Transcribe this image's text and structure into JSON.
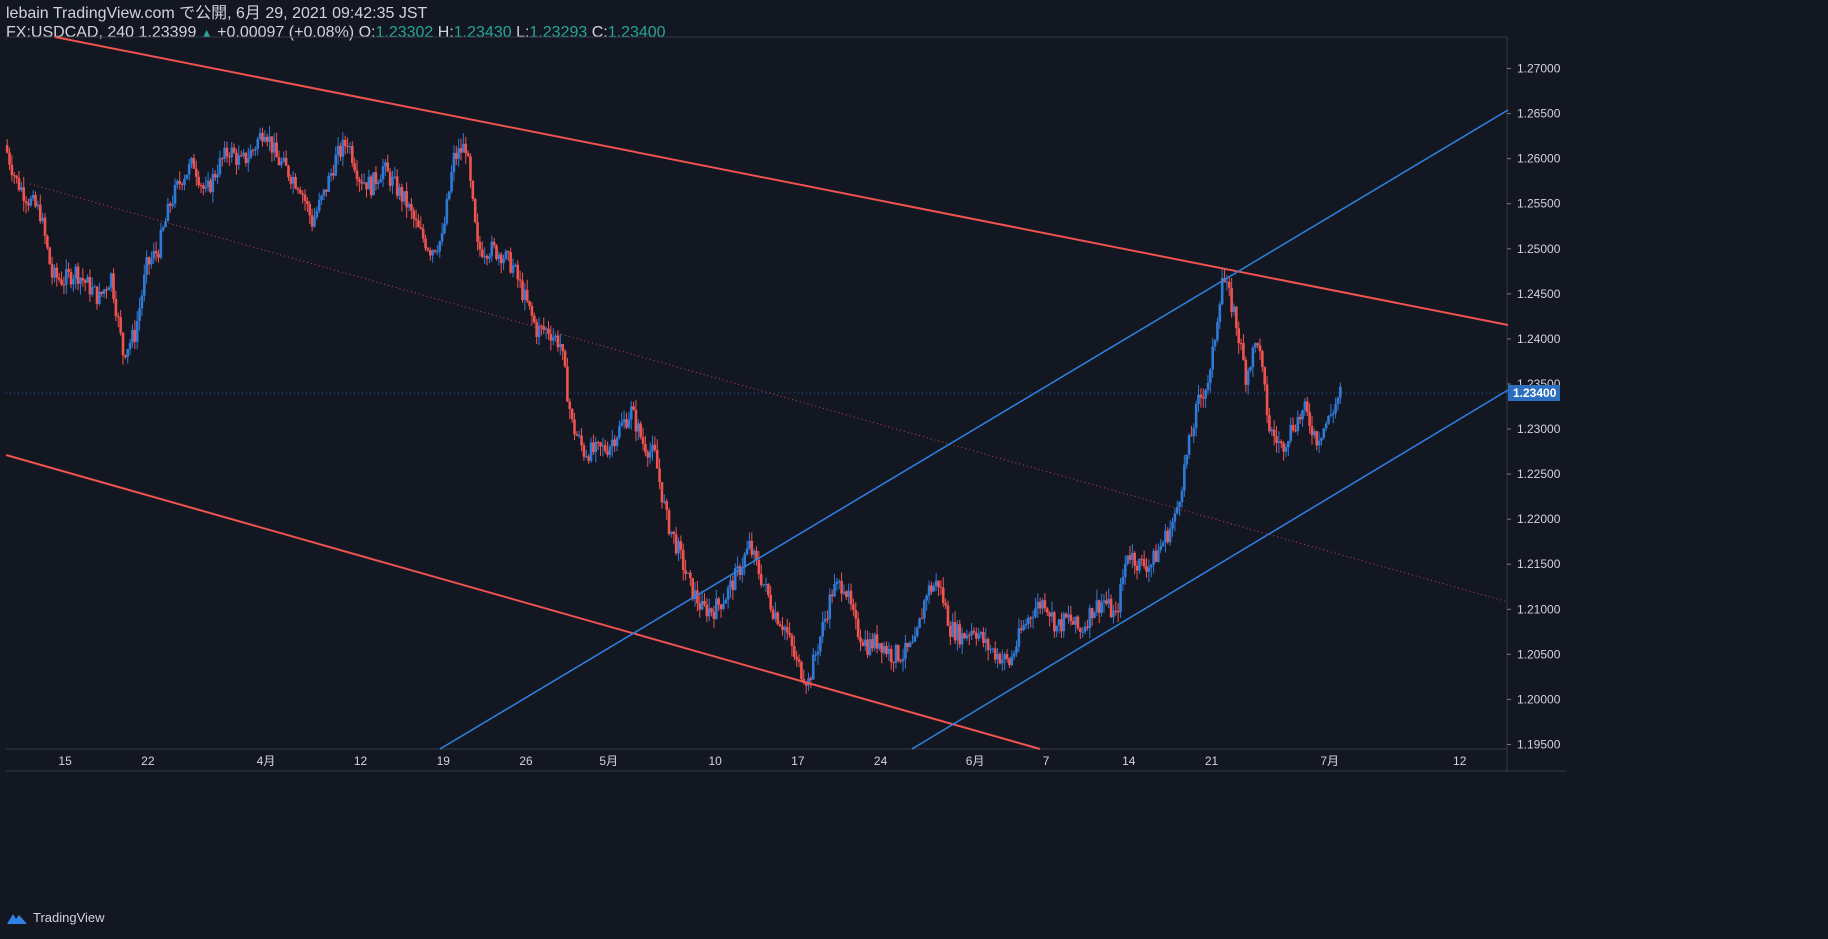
{
  "header": {
    "publisher": "lebain TradingView.com で公開, 6月 29, 2021 09:42:35 JST",
    "symbol": "FX:USDCAD, 240",
    "last": "1.23399",
    "change_arrow": "▲",
    "change": "+0.00097 (+0.08%)",
    "o_label": "O:",
    "o_value": "1.23302",
    "h_label": "H:",
    "h_value": "1.23430",
    "l_label": "L:",
    "l_value": "1.23293",
    "c_label": "C:",
    "c_value": "1.23400"
  },
  "footer": {
    "brand": "TradingView"
  },
  "colors": {
    "background": "#131722",
    "up": "#2f7ad6",
    "down": "#ef5350",
    "channel_up": "#2f82e3",
    "channel_down": "#f0524d",
    "grid_text": "#d1d4dc",
    "price_tag": "#2d6fbf"
  },
  "chart_data": {
    "type": "candlestick",
    "ylim": [
      1.1945,
      1.2735
    ],
    "y_ticks": [
      "1.27000",
      "1.26500",
      "1.26000",
      "1.25500",
      "1.25000",
      "1.24500",
      "1.24000",
      "1.23500",
      "1.23000",
      "1.22500",
      "1.22000",
      "1.21500",
      "1.21000",
      "1.20500",
      "1.20000",
      "1.19500"
    ],
    "x_ticks": [
      {
        "label": "15",
        "t": 5
      },
      {
        "label": "22",
        "t": 12
      },
      {
        "label": "4月",
        "t": 22
      },
      {
        "label": "12",
        "t": 30
      },
      {
        "label": "19",
        "t": 37
      },
      {
        "label": "26",
        "t": 44
      },
      {
        "label": "5月",
        "t": 51
      },
      {
        "label": "10",
        "t": 60
      },
      {
        "label": "17",
        "t": 67
      },
      {
        "label": "24",
        "t": 74
      },
      {
        "label": "6月",
        "t": 82
      },
      {
        "label": "7",
        "t": 88
      },
      {
        "label": "14",
        "t": 95
      },
      {
        "label": "21",
        "t": 102
      },
      {
        "label": "7月",
        "t": 112
      },
      {
        "label": "12",
        "t": 123
      }
    ],
    "last_price": "1.23400",
    "close_path": [
      [
        0,
        1.2615
      ],
      [
        1,
        1.2575
      ],
      [
        2,
        1.2555
      ],
      [
        3,
        1.254
      ],
      [
        4,
        1.247
      ],
      [
        5,
        1.2465
      ],
      [
        6,
        1.2475
      ],
      [
        7,
        1.246
      ],
      [
        8,
        1.2445
      ],
      [
        9,
        1.247
      ],
      [
        10,
        1.2385
      ],
      [
        11,
        1.2405
      ],
      [
        12,
        1.248
      ],
      [
        13,
        1.25
      ],
      [
        14,
        1.255
      ],
      [
        15,
        1.258
      ],
      [
        16,
        1.2595
      ],
      [
        17,
        1.256
      ],
      [
        18,
        1.259
      ],
      [
        19,
        1.261
      ],
      [
        20,
        1.2595
      ],
      [
        21,
        1.261
      ],
      [
        22,
        1.2635
      ],
      [
        23,
        1.26
      ],
      [
        24,
        1.2585
      ],
      [
        25,
        1.257
      ],
      [
        26,
        1.253
      ],
      [
        27,
        1.256
      ],
      [
        28,
        1.26
      ],
      [
        29,
        1.262
      ],
      [
        30,
        1.258
      ],
      [
        31,
        1.257
      ],
      [
        32,
        1.259
      ],
      [
        33,
        1.257
      ],
      [
        34,
        1.255
      ],
      [
        35,
        1.252
      ],
      [
        36,
        1.25
      ],
      [
        37,
        1.251
      ],
      [
        38,
        1.26
      ],
      [
        39,
        1.2615
      ],
      [
        40,
        1.25
      ],
      [
        41,
        1.25
      ],
      [
        42,
        1.2495
      ],
      [
        43,
        1.248
      ],
      [
        44,
        1.2445
      ],
      [
        45,
        1.241
      ],
      [
        46,
        1.241
      ],
      [
        47,
        1.2395
      ],
      [
        48,
        1.2305
      ],
      [
        49,
        1.2275
      ],
      [
        50,
        1.2275
      ],
      [
        51,
        1.228
      ],
      [
        52,
        1.23
      ],
      [
        53,
        1.232
      ],
      [
        54,
        1.2285
      ],
      [
        55,
        1.227
      ],
      [
        56,
        1.22
      ],
      [
        57,
        1.2165
      ],
      [
        58,
        1.2125
      ],
      [
        59,
        1.21
      ],
      [
        60,
        1.21
      ],
      [
        61,
        1.2115
      ],
      [
        62,
        1.214
      ],
      [
        63,
        1.217
      ],
      [
        64,
        1.2135
      ],
      [
        65,
        1.21
      ],
      [
        66,
        1.208
      ],
      [
        67,
        1.204
      ],
      [
        68,
        1.202
      ],
      [
        69,
        1.207
      ],
      [
        70,
        1.212
      ],
      [
        71,
        1.213
      ],
      [
        72,
        1.208
      ],
      [
        73,
        1.206
      ],
      [
        74,
        1.2065
      ],
      [
        75,
        1.205
      ],
      [
        76,
        1.205
      ],
      [
        77,
        1.206
      ],
      [
        78,
        1.212
      ],
      [
        79,
        1.213
      ],
      [
        80,
        1.208
      ],
      [
        81,
        1.207
      ],
      [
        82,
        1.208
      ],
      [
        83,
        1.206
      ],
      [
        84,
        1.205
      ],
      [
        85,
        1.204
      ],
      [
        86,
        1.2075
      ],
      [
        87,
        1.21
      ],
      [
        88,
        1.211
      ],
      [
        89,
        1.208
      ],
      [
        90,
        1.209
      ],
      [
        91,
        1.2075
      ],
      [
        92,
        1.21
      ],
      [
        93,
        1.211
      ],
      [
        94,
        1.209
      ],
      [
        95,
        1.2165
      ],
      [
        96,
        1.215
      ],
      [
        97,
        1.215
      ],
      [
        98,
        1.2175
      ],
      [
        99,
        1.22
      ],
      [
        100,
        1.227
      ],
      [
        101,
        1.233
      ],
      [
        102,
        1.236
      ],
      [
        103,
        1.247
      ],
      [
        104,
        1.243
      ],
      [
        105,
        1.236
      ],
      [
        106,
        1.24
      ],
      [
        107,
        1.23
      ],
      [
        108,
        1.228
      ],
      [
        109,
        1.2305
      ],
      [
        110,
        1.232
      ],
      [
        111,
        1.229
      ],
      [
        112,
        1.231
      ],
      [
        113,
        1.234
      ]
    ],
    "trendlines": [
      {
        "name": "red-upper",
        "color": "down",
        "width": 2,
        "style": "solid",
        "points": [
          [
            55,
            37
          ],
          [
            1508,
            325
          ]
        ]
      },
      {
        "name": "red-lower",
        "color": "down",
        "width": 2,
        "style": "solid",
        "points": [
          [
            6,
            455
          ],
          [
            1040,
            749
          ]
        ]
      },
      {
        "name": "red-mid",
        "color": "down",
        "width": 1,
        "style": "dotted",
        "points": [
          [
            30,
            184
          ],
          [
            1508,
            602
          ]
        ]
      },
      {
        "name": "blue-upper",
        "color": "channel_up",
        "width": 1.5,
        "style": "solid",
        "points": [
          [
            440,
            749
          ],
          [
            1508,
            110
          ]
        ]
      },
      {
        "name": "blue-lower",
        "color": "channel_up",
        "width": 1.5,
        "style": "solid",
        "points": [
          [
            912,
            749
          ],
          [
            1508,
            390
          ]
        ]
      }
    ]
  }
}
